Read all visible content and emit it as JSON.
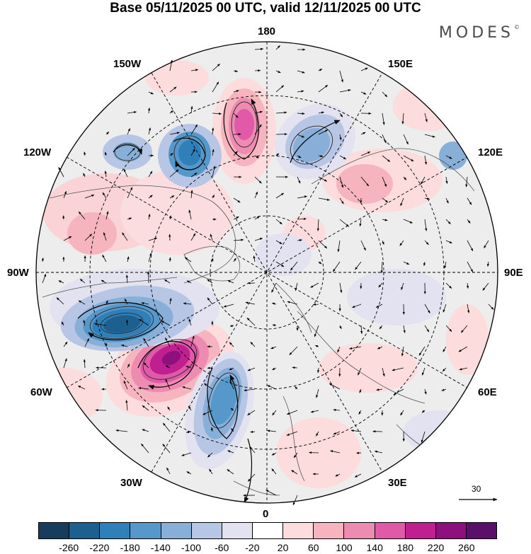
{
  "title": "Base 05/11/2025 00 UTC, valid 12/11/2025 00 UTC",
  "brand": "MODES",
  "brand_mark": "©",
  "longitude_labels": {
    "top": "180",
    "bottom": "0",
    "left": "90W",
    "right": "90E",
    "upper_left_1": "150W",
    "upper_left_2": "120W",
    "upper_right_1": "150E",
    "upper_right_2": "120E",
    "lower_left_1": "60W",
    "lower_left_2": "30W",
    "lower_right_1": "60E",
    "lower_right_2": "30E"
  },
  "reference_vector": {
    "label": "30"
  },
  "colorbar": {
    "colors": [
      "#173c5c",
      "#1d5f8f",
      "#2f7fb8",
      "#5598c9",
      "#87afd8",
      "#b8c6e6",
      "#e2e2f0",
      "#ffffff",
      "#fcdcdc",
      "#f6b4bf",
      "#ee8bb1",
      "#e05aa8",
      "#c0208f",
      "#8e107f",
      "#5a0f6a"
    ],
    "tick_labels": [
      "-260",
      "-220",
      "-180",
      "-140",
      "-100",
      "-60",
      "-20",
      "20",
      "60",
      "100",
      "140",
      "180",
      "220",
      "260"
    ]
  },
  "colors": {
    "land_background": "#ececec",
    "ocean": "#f5f5f5"
  }
}
